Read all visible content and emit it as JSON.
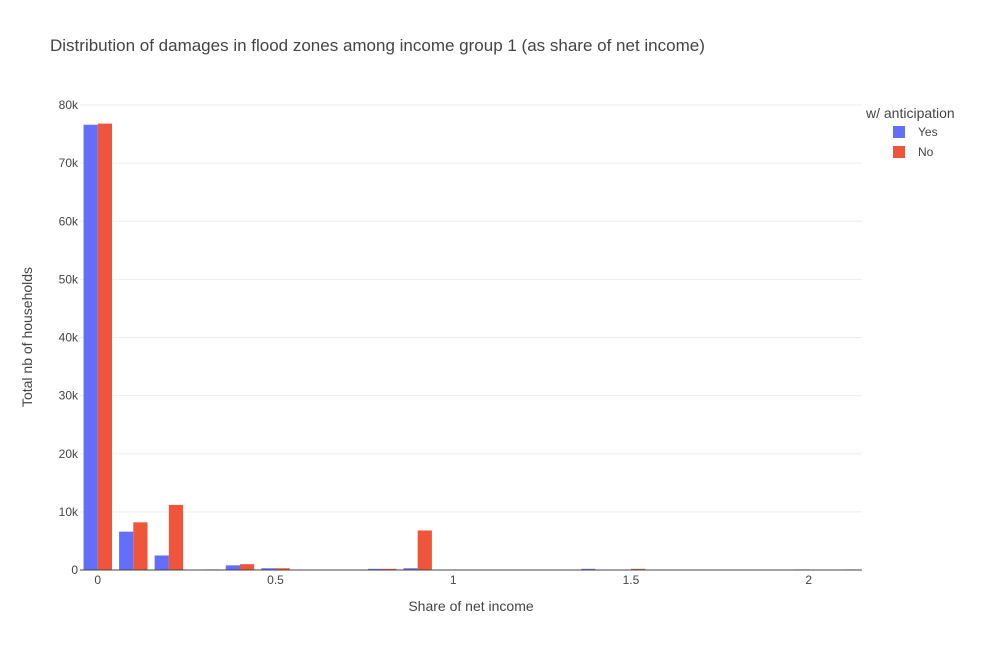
{
  "chart_data": {
    "type": "bar",
    "title": "Distribution of damages in flood zones among income group 1 (as share of net income)",
    "xlabel": "Share of net income",
    "ylabel": "Total nb of households",
    "xlim": [
      -0.05,
      2.15
    ],
    "ylim": [
      0,
      80000
    ],
    "xticks": [
      0,
      0.5,
      1,
      1.5,
      2
    ],
    "xtick_labels": [
      "0",
      "0.5",
      "1",
      "1.5",
      "2"
    ],
    "yticks": [
      0,
      10000,
      20000,
      30000,
      40000,
      50000,
      60000,
      70000,
      80000
    ],
    "ytick_labels": [
      "0",
      "10k",
      "20k",
      "30k",
      "40k",
      "50k",
      "60k",
      "70k",
      "80k"
    ],
    "bin_width": 0.1,
    "x": [
      0,
      0.1,
      0.2,
      0.3,
      0.4,
      0.5,
      0.6,
      0.7,
      0.8,
      0.9,
      1.0,
      1.1,
      1.2,
      1.3,
      1.4,
      1.5,
      1.6,
      1.7,
      1.8,
      1.9,
      2.0,
      2.1
    ],
    "grid": true,
    "legend": {
      "title": "w/ anticipation",
      "position": "top-right"
    },
    "series": [
      {
        "name": "Yes",
        "color": "#636efa",
        "values": [
          76600,
          6600,
          2500,
          50,
          800,
          300,
          0,
          0,
          200,
          300,
          0,
          0,
          0,
          0,
          200,
          0,
          0,
          0,
          0,
          0,
          100,
          0
        ]
      },
      {
        "name": "No",
        "color": "#ef553b",
        "values": [
          76800,
          8200,
          11200,
          100,
          1000,
          300,
          0,
          0,
          200,
          6800,
          0,
          0,
          0,
          0,
          0,
          200,
          0,
          0,
          0,
          0,
          0,
          100
        ]
      }
    ]
  }
}
